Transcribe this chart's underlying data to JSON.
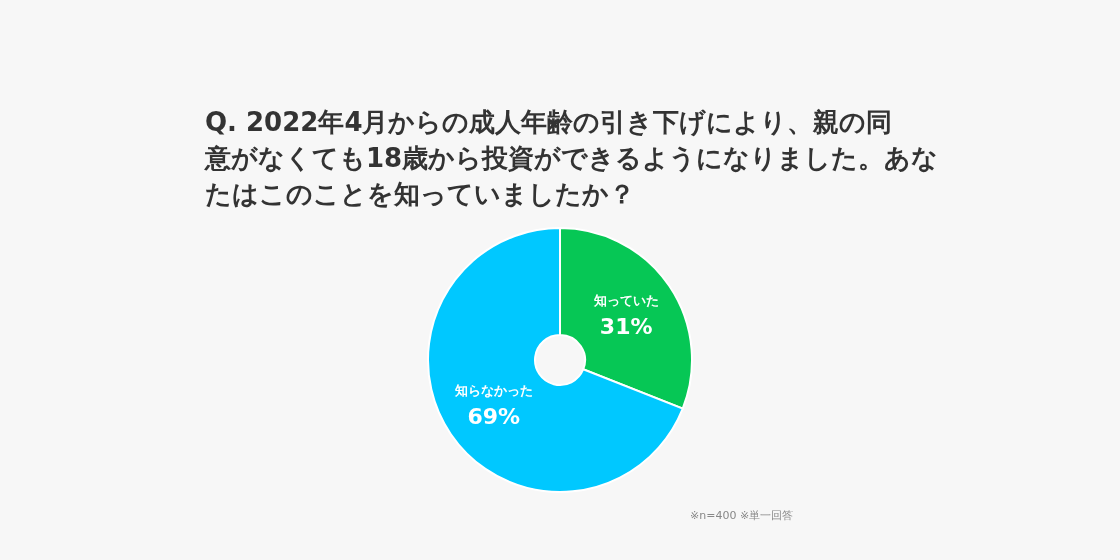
{
  "chart_data": {
    "type": "donut",
    "title": "Q. 2022年4月からの成人年齢の引き下げにより、親の同意がなくても18歳から投資ができるようになりました。あなたはこのことを知っていましたか？",
    "categories": [
      "知っていた",
      "知らなかった"
    ],
    "values": [
      31,
      69
    ],
    "value_labels": [
      "31%",
      "69%"
    ],
    "colors": [
      "#06c755",
      "#00c8ff"
    ],
    "annotations": [
      "※n=400 ※単一回答"
    ]
  }
}
